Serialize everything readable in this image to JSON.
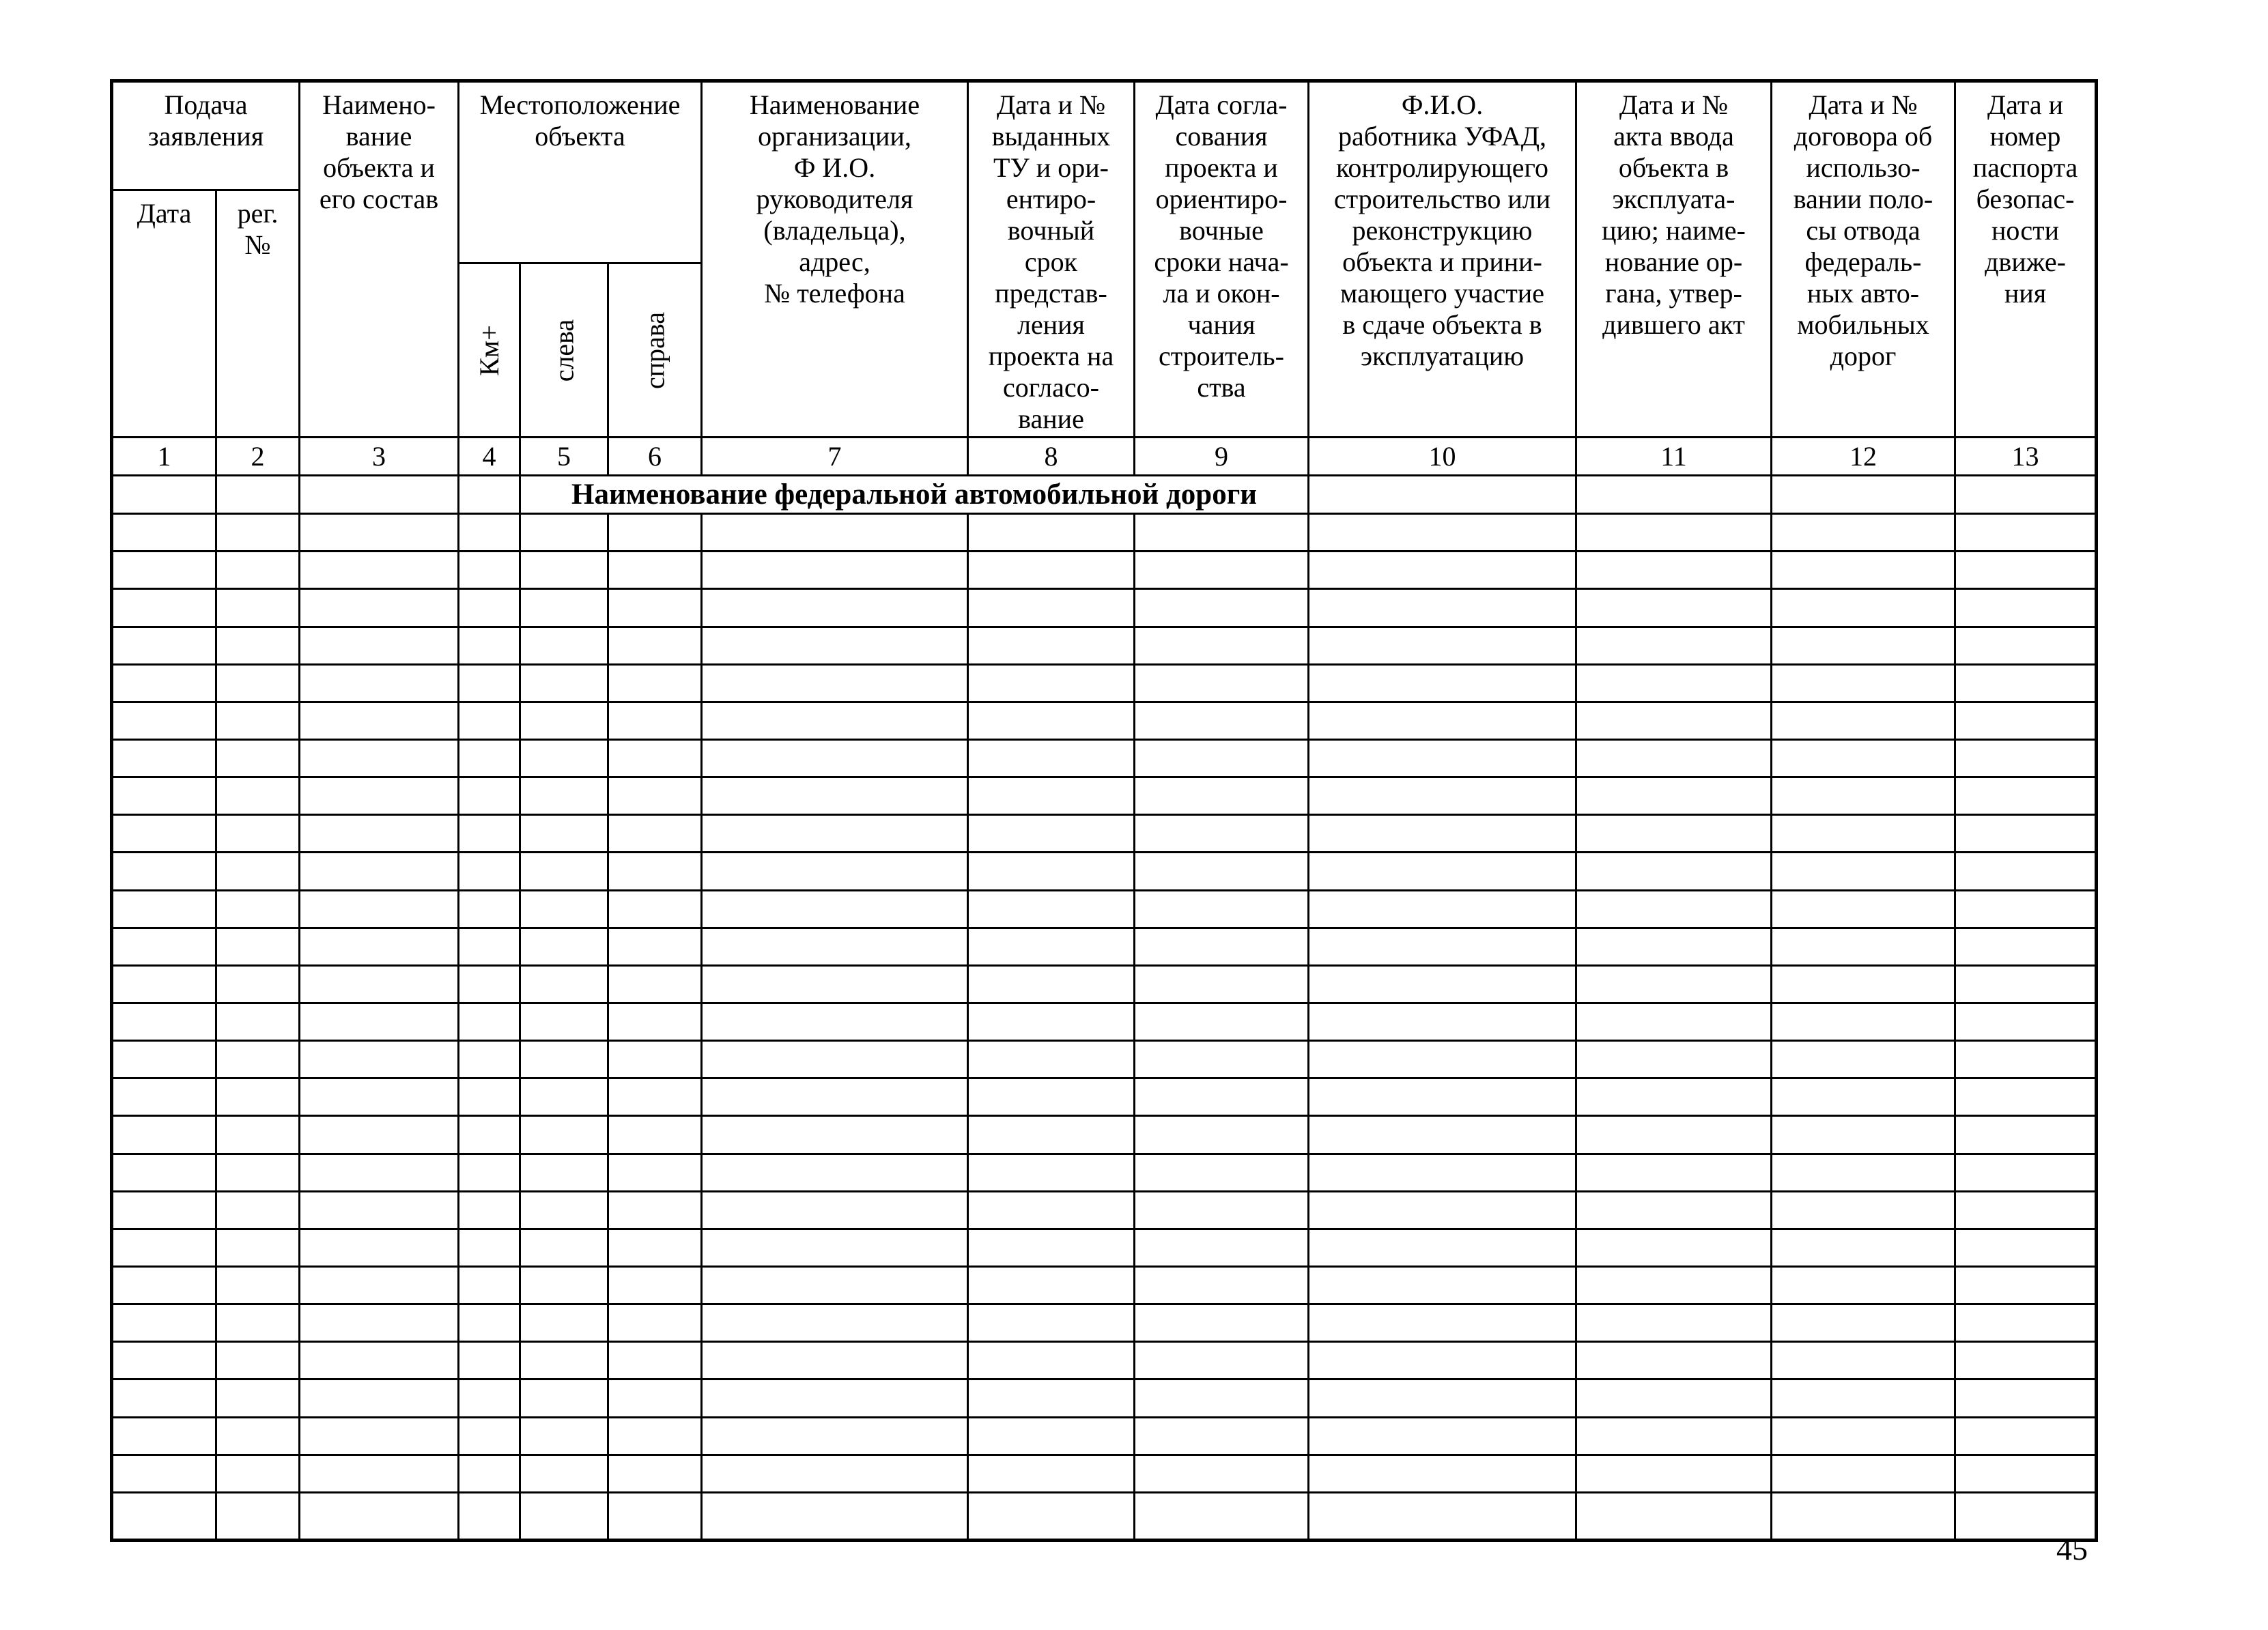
{
  "page_number": "45",
  "table": {
    "groups": {
      "submission": "Подача\nзаявления",
      "location": "Местоположение\nобъекта"
    },
    "columns": {
      "c1": "Дата",
      "c2": "рег.\n№",
      "c3": "Наимено-\nвание\nобъекта и\nего состав",
      "c4": "Км+",
      "c5": "слева",
      "c6": "справа",
      "c7": "Наименование\nорганизации,\nФ И.О.\nруководителя\n(владельца),\nадрес,\n№ телефона",
      "c8": "Дата и №\nвыданных\nТУ и ори-\nентиро-\nвочный\nсрок\nпредстав-\nления\nпроекта на\nсогласо-\nвание",
      "c9": "Дата согла-\nсования\nпроекта и\nориентиро-\nвочные\nсроки нача-\nла и окон-\nчания\nстроитель-\nства",
      "c10": "Ф.И.О.\nработника УФАД,\nконтролирующего\nстроительство или\nреконструкцию\nобъекта и прини-\nмающего участие\nв сдаче объекта в\nэксплуатацию",
      "c11": "Дата и №\nакта ввода\nобъекта в\nэксплуата-\nцию; наиме-\nнование ор-\nгана, утвер-\nдившего акт",
      "c12": "Дата и №\nдоговора об\nиспользо-\nвании поло-\nсы отвода\nфедераль-\nных авто-\nмобильных\nдорог",
      "c13": "Дата и\nномер\nпаспорта\nбезопас-\nности\nдвиже-\nния"
    },
    "column_numbers": [
      "1",
      "2",
      "3",
      "4",
      "5",
      "6",
      "7",
      "8",
      "9",
      "10",
      "11",
      "12",
      "13"
    ],
    "road_name_row": "Наименование федеральной автомобильной дороги",
    "empty_row_count": 27
  }
}
